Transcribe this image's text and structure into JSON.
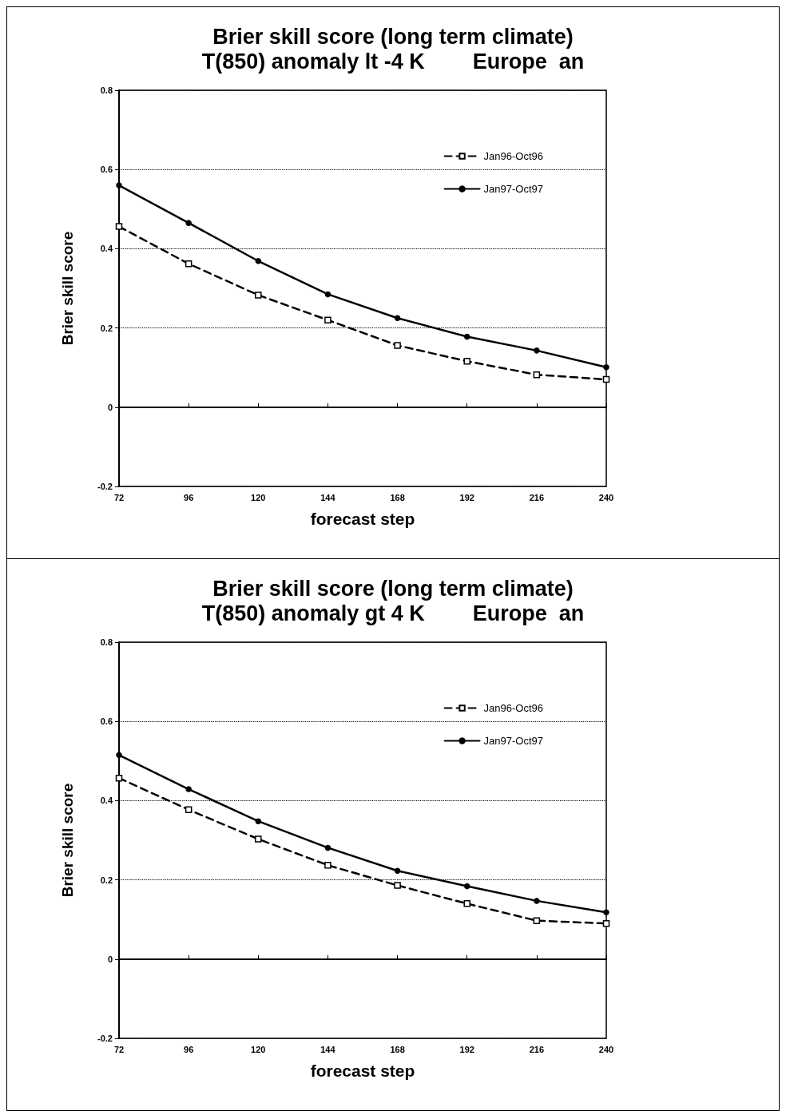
{
  "chart_data": [
    {
      "type": "line",
      "title": "Brier skill score (long term climate)",
      "subtitle": "T(850) anomaly lt -4 K        Europe  an",
      "xlabel": "forecast step",
      "ylabel": "Brier skill score",
      "x": [
        72,
        96,
        120,
        144,
        168,
        192,
        216,
        240
      ],
      "series": [
        {
          "name": "Jan96-Oct96",
          "color": "#000000",
          "line_style": "dashed",
          "marker": "square",
          "values": [
            0.456,
            0.362,
            0.283,
            0.22,
            0.156,
            0.116,
            0.082,
            0.07
          ]
        },
        {
          "name": "Jan97-Oct97",
          "color": "#000000",
          "line_style": "solid",
          "marker": "circle",
          "values": [
            0.56,
            0.465,
            0.369,
            0.285,
            0.225,
            0.178,
            0.143,
            0.101
          ]
        }
      ],
      "xlim": [
        72,
        240
      ],
      "xticks": [
        72,
        96,
        120,
        144,
        168,
        192,
        216,
        240
      ],
      "ylim": [
        -0.2,
        0.8
      ],
      "yticks": [
        -0.2,
        0,
        0.2,
        0.4,
        0.6,
        0.8
      ],
      "grid": "y",
      "legend": "top right"
    },
    {
      "type": "line",
      "title": "Brier skill score (long term climate)",
      "subtitle": "T(850) anomaly gt 4 K        Europe  an",
      "xlabel": "forecast step",
      "ylabel": "Brier skill score",
      "x": [
        72,
        96,
        120,
        144,
        168,
        192,
        216,
        240
      ],
      "series": [
        {
          "name": "Jan96-Oct96",
          "color": "#000000",
          "line_style": "dashed",
          "marker": "square",
          "values": [
            0.457,
            0.377,
            0.303,
            0.237,
            0.186,
            0.14,
            0.097,
            0.09
          ]
        },
        {
          "name": "Jan97-Oct97",
          "color": "#000000",
          "line_style": "solid",
          "marker": "circle",
          "values": [
            0.515,
            0.429,
            0.348,
            0.281,
            0.223,
            0.184,
            0.147,
            0.118
          ]
        }
      ],
      "xlim": [
        72,
        240
      ],
      "xticks": [
        72,
        96,
        120,
        144,
        168,
        192,
        216,
        240
      ],
      "ylim": [
        -0.2,
        0.8
      ],
      "yticks": [
        -0.2,
        0,
        0.2,
        0.4,
        0.6,
        0.8
      ],
      "grid": "y",
      "legend": "top right"
    }
  ]
}
